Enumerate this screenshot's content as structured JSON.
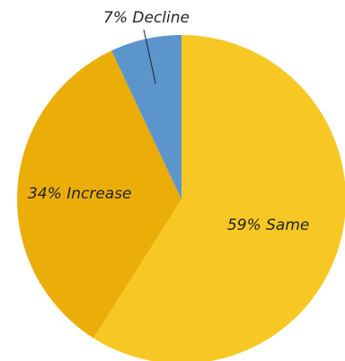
{
  "chart_data": {
    "type": "pie",
    "title": "",
    "slices": [
      {
        "label": "Same",
        "value": 59,
        "display": "59% Same",
        "color": "#F7C824"
      },
      {
        "label": "Increase",
        "value": 34,
        "display": "34% Increase",
        "color": "#EBAD08"
      },
      {
        "label": "Decline",
        "value": 7,
        "display": "7% Decline",
        "color": "#5B95CB"
      }
    ],
    "start_angle_deg": 0,
    "direction": "clockwise",
    "legend": "none",
    "label_placement": "inside, except smallest slice labeled outside with leader line"
  }
}
